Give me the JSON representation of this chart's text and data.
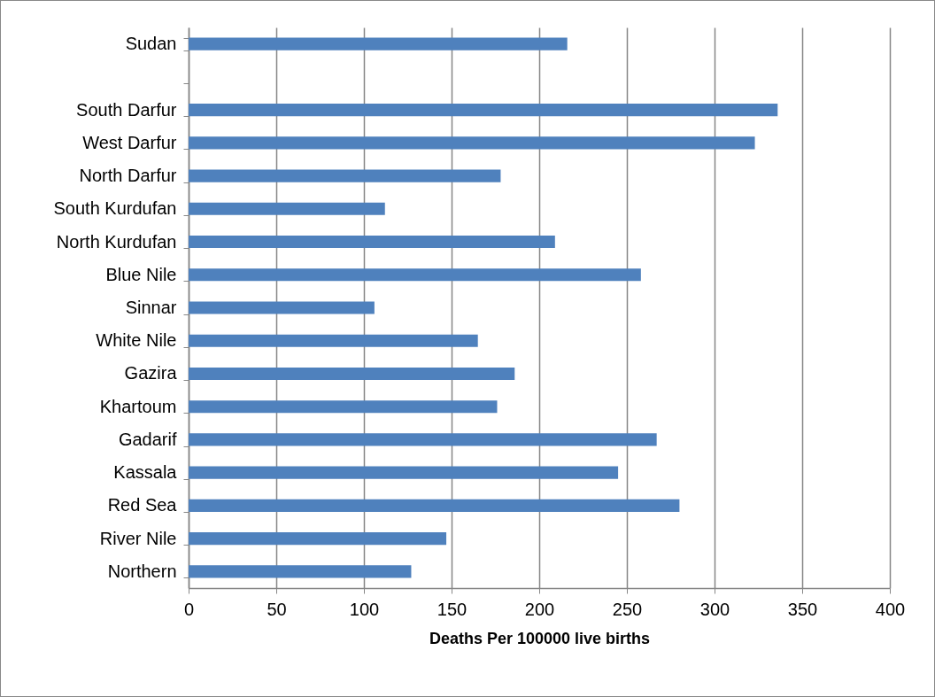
{
  "chart_data": {
    "type": "bar",
    "orientation": "horizontal",
    "xlabel": "Deaths Per 100000 live births",
    "categories": [
      "Sudan",
      null,
      "South Darfur",
      "West Darfur",
      "North Darfur",
      "South Kurdufan",
      "North Kurdufan",
      "Blue Nile",
      "Sinnar",
      "White Nile",
      "Gazira",
      "Khartoum",
      "Gadarif",
      "Kassala",
      "Red Sea",
      "River Nile",
      "Northern"
    ],
    "values": [
      216,
      null,
      336,
      323,
      178,
      112,
      209,
      258,
      106,
      165,
      186,
      176,
      267,
      245,
      280,
      147,
      127
    ],
    "color": "#4f81bd",
    "xlim": [
      0,
      400
    ],
    "xticks": [
      0,
      50,
      100,
      150,
      200,
      250,
      300,
      350,
      400
    ],
    "grid": "x"
  }
}
